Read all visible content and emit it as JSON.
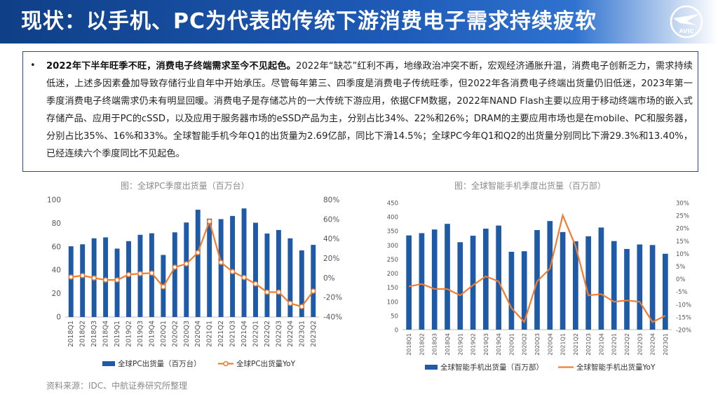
{
  "header": {
    "title": "现状：以手机、PC为代表的传统下游消费电子需求持续疲软",
    "logo_text": "AVIC"
  },
  "summary": {
    "bullet": "•",
    "lead": "2022年下半年旺季不旺，消费电子终端需求至今不见起色。",
    "body": "2022年“缺芯”红利不再，地缘政治冲突不断，宏观经济通胀升温，消费电子创新乏力，需求持续低迷，上述多因素叠加导致存储行业自年中开始承压。尽管每年第三、四季度是消费电子传统旺季，但2022年各消费电子终端出货量仍旧低迷，2023年第一季度消费电子终端需求仍未有明显回暖。消费电子是存储芯片的一大传统下游应用，依据CFM数据，2022年NAND Flash主要以应用于移动终端市场的嵌入式存储产品、应用于PC的cSSD，以及应用于服务器市场的eSSD产品为主，分别占比34%、22%和26%；DRAM的主要应用市场也是在mobile、PC和服务器，分别占比35%、16%和33%。全球智能手机今年Q1的出货量为2.69亿部，同比下滑14.5%；全球PC今年Q1和Q2的出货量分别同比下滑29.3%和13.40%，已经连续六个季度同比不见起色。"
  },
  "source_note": "资料来源：IDC、中航证券研究所整理",
  "colors": {
    "bar": "#1f5aa6",
    "line": "#ef7d31",
    "title_bg": "#1a4f9e"
  },
  "chart_data": [
    {
      "type": "bar",
      "caption": "图：全球PC季度出货量（百万台）",
      "categories": [
        "2018Q1",
        "2018Q2",
        "2018Q3",
        "2018Q4",
        "2019Q1",
        "2019Q2",
        "2019Q3",
        "2019Q4",
        "2020Q1",
        "2020Q2",
        "2020Q3",
        "2020Q4",
        "2021Q1",
        "2021Q2",
        "2021Q3",
        "2021Q4",
        "2022Q1",
        "2022Q2",
        "2022Q3",
        "2022Q4",
        "2023Q1",
        "2023Q2"
      ],
      "series": [
        {
          "name": "全球PC出货量（百万台）",
          "axis": "left",
          "type": "bar",
          "values": [
            60.4,
            62.1,
            67.2,
            68.0,
            58.4,
            64.8,
            70.2,
            71.5,
            53.0,
            72.3,
            80.7,
            91.6,
            84.0,
            83.6,
            86.3,
            92.7,
            80.5,
            71.3,
            74.3,
            67.2,
            56.9,
            61.6
          ]
        },
        {
          "name": "全球PC出货量YoY",
          "axis": "right",
          "type": "line",
          "unit": "%",
          "values": [
            1.0,
            2.5,
            0.0,
            -2.0,
            -2.0,
            3.5,
            4.5,
            5.0,
            -9.0,
            11.0,
            14.5,
            26.0,
            58.0,
            16.0,
            6.5,
            0.5,
            -6.0,
            -14.5,
            -14.5,
            -26.0,
            -29.3,
            -13.4
          ]
        }
      ],
      "y_left": {
        "min": 0,
        "max": 100,
        "ticks": [
          "0",
          "20",
          "40",
          "60",
          "80",
          "100"
        ]
      },
      "y_right": {
        "min": -40,
        "max": 80,
        "ticks": [
          "-40%",
          "-20%",
          "0%",
          "20%",
          "40%",
          "60%",
          "80%"
        ]
      }
    },
    {
      "type": "bar",
      "caption": "图：全球智能手机季度出货量（百万部）",
      "categories": [
        "2018Q1",
        "2018Q2",
        "2018Q3",
        "2018Q4",
        "2019Q1",
        "2019Q2",
        "2019Q3",
        "2019Q4",
        "2020Q1",
        "2020Q2",
        "2020Q3",
        "2020Q4",
        "2021Q1",
        "2021Q2",
        "2021Q3",
        "2021Q4",
        "2022Q1",
        "2022Q2",
        "2022Q3",
        "2022Q4",
        "2023Q1"
      ],
      "series": [
        {
          "name": "全球智能手机出货量（百万部）",
          "axis": "left",
          "type": "bar",
          "values": [
            334,
            342,
            355,
            375,
            310,
            333,
            358,
            369,
            276,
            278,
            353,
            385,
            346,
            313,
            331,
            362,
            314,
            286,
            302,
            300,
            269
          ]
        },
        {
          "name": "全球智能手机出货量YoY",
          "axis": "right",
          "type": "line",
          "unit": "%",
          "values": [
            -3.0,
            -2.0,
            -4.0,
            -4.0,
            -6.5,
            -2.5,
            1.0,
            -1.0,
            -11.5,
            -17.0,
            -1.0,
            4.0,
            25.0,
            13.0,
            -6.5,
            -6.0,
            -9.0,
            -8.5,
            -9.0,
            -17.0,
            -14.5
          ]
        }
      ],
      "y_left": {
        "min": 0,
        "max": 450,
        "ticks": [
          "0",
          "50",
          "100",
          "150",
          "200",
          "250",
          "300",
          "350",
          "400",
          "450"
        ]
      },
      "y_right": {
        "min": -20,
        "max": 30,
        "ticks": [
          "-20%",
          "-15%",
          "-10%",
          "-5%",
          "0%",
          "5%",
          "10%",
          "15%",
          "20%",
          "25%",
          "30%"
        ]
      }
    }
  ]
}
